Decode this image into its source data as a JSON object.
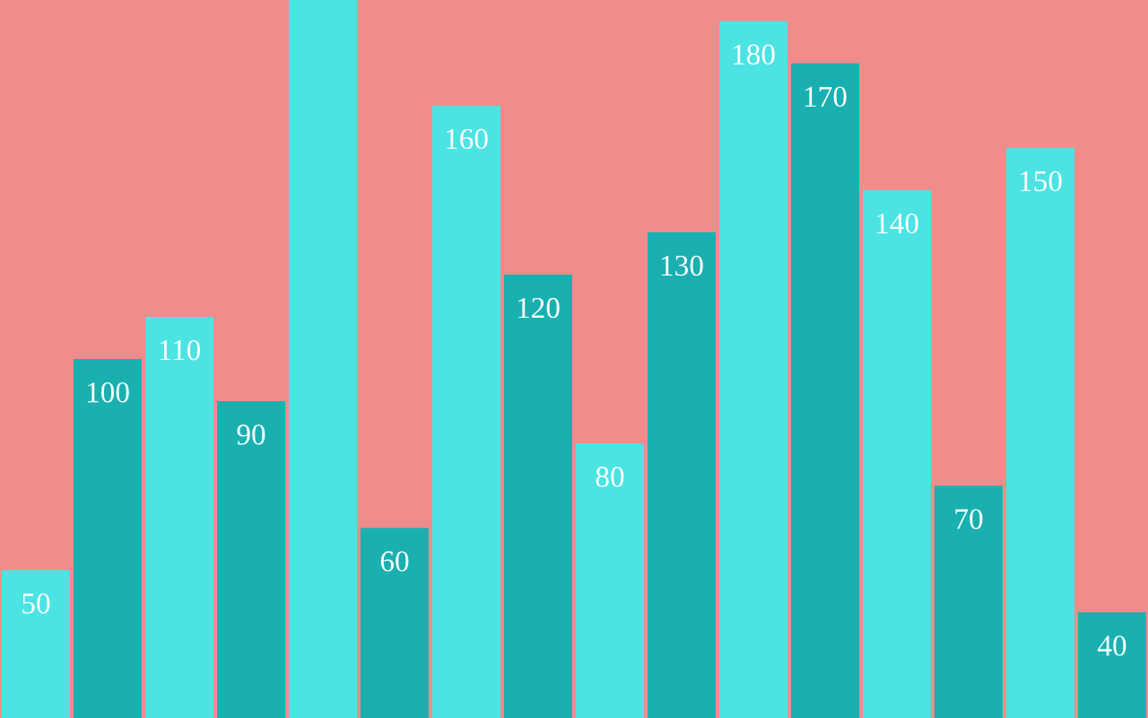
{
  "chart_data": {
    "type": "bar",
    "categories": [
      null,
      null,
      null,
      null,
      null,
      null,
      null,
      null,
      null,
      null,
      null,
      null,
      null,
      null,
      null,
      null
    ],
    "values": [
      50,
      100,
      110,
      90,
      185,
      60,
      160,
      120,
      80,
      130,
      180,
      170,
      140,
      70,
      150,
      40
    ],
    "value_labels": [
      "50",
      "100",
      "110",
      "90",
      null,
      "60",
      "160",
      "120",
      "80",
      "130",
      "180",
      "170",
      "140",
      "70",
      "150",
      "40"
    ],
    "colors": [
      "#4ce3e3",
      "#1ab0b0",
      "#4ce3e3",
      "#1ab0b0",
      "#4ce3e3",
      "#1ab0b0",
      "#4ce3e3",
      "#1ab0b0",
      "#4ce3e3",
      "#1ab0b0",
      "#4ce3e3",
      "#1ab0b0",
      "#4ce3e3",
      "#1ab0b0",
      "#4ce3e3",
      "#1ab0b0"
    ],
    "ylim": [
      15,
      185
    ]
  }
}
